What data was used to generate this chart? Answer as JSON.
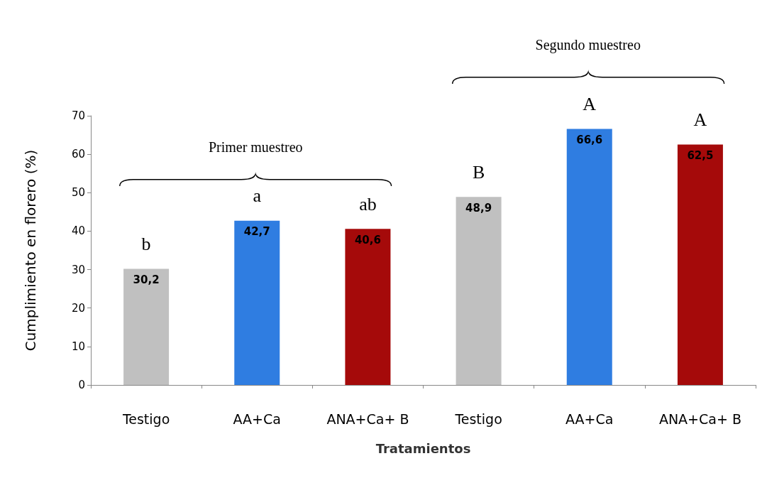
{
  "chart_data": {
    "type": "bar",
    "xlabel": "Tratamientos",
    "ylabel": "Cumplimiento en florero (%)",
    "categories": [
      "Testigo",
      "AA+Ca",
      "ANA+Ca+ B",
      "Testigo",
      "AA+Ca",
      "ANA+Ca+ B"
    ],
    "values": [
      30.2,
      42.7,
      40.6,
      48.9,
      66.6,
      62.5
    ],
    "colors": [
      "#c0c0c0",
      "#2f7de1",
      "#a50a0a",
      "#c0c0c0",
      "#2f7de1",
      "#a50a0a"
    ],
    "value_labels": [
      "30,2",
      "42,7",
      "40,6",
      "48,9",
      "66,6",
      "62,5"
    ],
    "ylim": [
      0,
      70
    ],
    "yticks": [
      0,
      10,
      20,
      30,
      40,
      50,
      60,
      70
    ],
    "grid": false,
    "annotations": [
      "b",
      "a",
      "ab",
      "B",
      "A",
      "A",
      "Primer muestreo",
      "Segundo muestreo"
    ]
  }
}
